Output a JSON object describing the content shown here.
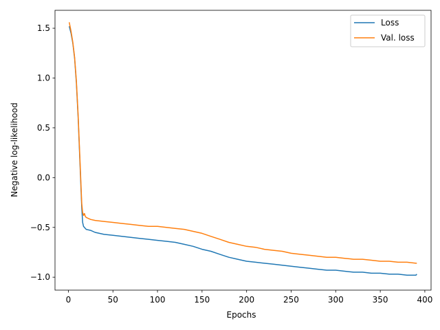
{
  "chart_data": {
    "type": "line",
    "title": "",
    "xlabel": "Epochs",
    "ylabel": "Negative log-likelihood",
    "xlim": [
      -15,
      407
    ],
    "ylim": [
      -1.13,
      1.68
    ],
    "xticks": [
      0,
      50,
      100,
      150,
      200,
      250,
      300,
      350,
      400
    ],
    "yticks": [
      -1.0,
      -0.5,
      0.0,
      0.5,
      1.0,
      1.5
    ],
    "xtick_labels": [
      "0",
      "50",
      "100",
      "150",
      "200",
      "250",
      "300",
      "350",
      "400"
    ],
    "ytick_labels": [
      "−1.0",
      "−0.5",
      "0.0",
      "0.5",
      "1.0",
      "1.5"
    ],
    "grid": false,
    "legend_position": "top-right",
    "series": [
      {
        "name": "Loss",
        "color": "#1f77b4",
        "x": [
          1,
          3,
          5,
          7,
          9,
          11,
          13,
          15,
          16,
          17,
          18,
          19,
          20,
          25,
          30,
          40,
          50,
          60,
          70,
          80,
          90,
          100,
          110,
          120,
          130,
          140,
          150,
          160,
          170,
          180,
          190,
          200,
          210,
          220,
          230,
          240,
          250,
          260,
          270,
          280,
          290,
          300,
          310,
          320,
          330,
          340,
          350,
          360,
          370,
          380,
          390,
          391
        ],
        "values": [
          1.52,
          1.45,
          1.35,
          1.2,
          0.95,
          0.6,
          0.15,
          -0.3,
          -0.45,
          -0.49,
          -0.5,
          -0.51,
          -0.52,
          -0.53,
          -0.55,
          -0.57,
          -0.58,
          -0.59,
          -0.6,
          -0.61,
          -0.62,
          -0.63,
          -0.64,
          -0.65,
          -0.67,
          -0.69,
          -0.72,
          -0.74,
          -0.77,
          -0.8,
          -0.82,
          -0.84,
          -0.85,
          -0.86,
          -0.87,
          -0.88,
          -0.89,
          -0.9,
          -0.91,
          -0.92,
          -0.93,
          -0.93,
          -0.94,
          -0.95,
          -0.95,
          -0.96,
          -0.96,
          -0.97,
          -0.97,
          -0.98,
          -0.98,
          -0.97
        ]
      },
      {
        "name": "Val. loss",
        "color": "#ff7f0e",
        "x": [
          1,
          3,
          5,
          7,
          9,
          11,
          13,
          15,
          16,
          17,
          18,
          19,
          20,
          25,
          30,
          40,
          50,
          60,
          70,
          80,
          90,
          100,
          110,
          120,
          130,
          140,
          150,
          160,
          170,
          180,
          190,
          200,
          210,
          220,
          230,
          240,
          250,
          260,
          270,
          280,
          290,
          300,
          310,
          320,
          330,
          340,
          350,
          360,
          370,
          380,
          390,
          391
        ],
        "values": [
          1.56,
          1.47,
          1.36,
          1.21,
          0.97,
          0.62,
          0.18,
          -0.26,
          -0.35,
          -0.38,
          -0.36,
          -0.39,
          -0.4,
          -0.42,
          -0.43,
          -0.44,
          -0.45,
          -0.46,
          -0.47,
          -0.48,
          -0.49,
          -0.49,
          -0.5,
          -0.51,
          -0.52,
          -0.54,
          -0.56,
          -0.59,
          -0.62,
          -0.65,
          -0.67,
          -0.69,
          -0.7,
          -0.72,
          -0.73,
          -0.74,
          -0.76,
          -0.77,
          -0.78,
          -0.79,
          -0.8,
          -0.8,
          -0.81,
          -0.82,
          -0.82,
          -0.83,
          -0.84,
          -0.84,
          -0.85,
          -0.85,
          -0.86,
          -0.86
        ]
      }
    ]
  }
}
